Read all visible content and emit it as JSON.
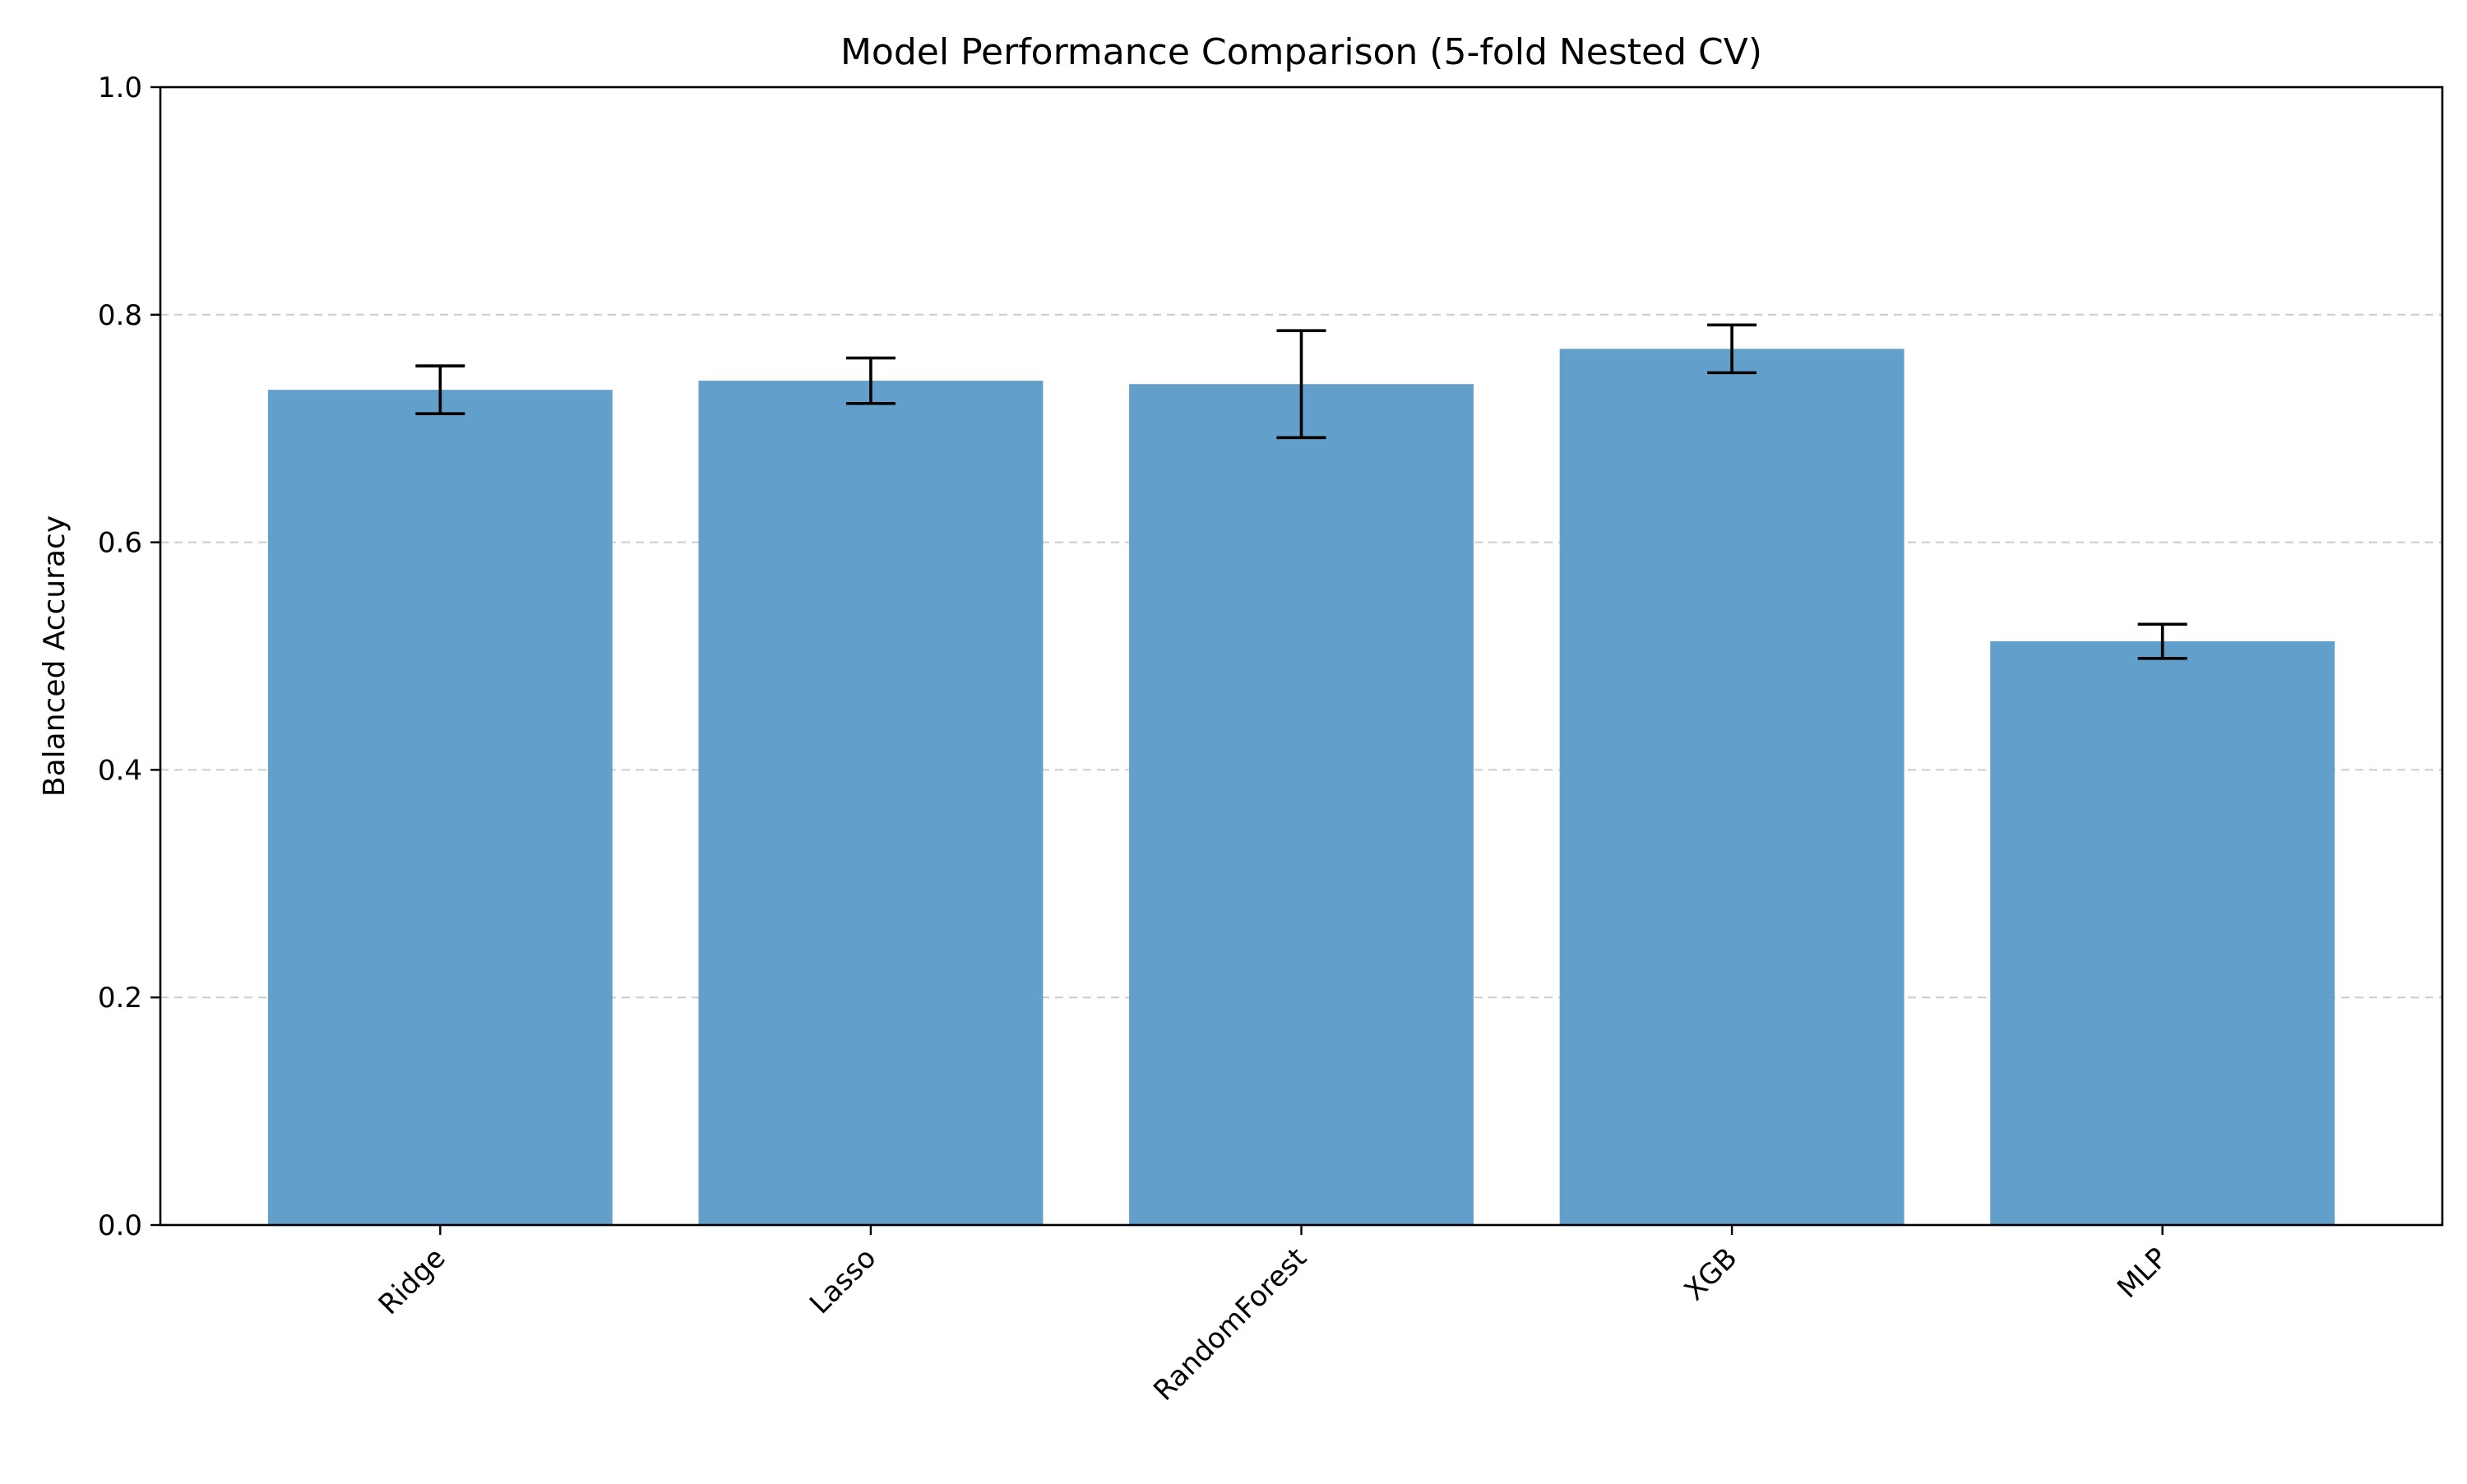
{
  "chart_data": {
    "type": "bar",
    "title": "Model Performance Comparison (5-fold Nested CV)",
    "xlabel": "",
    "ylabel": "Balanced Accuracy",
    "categories": [
      "Ridge",
      "Lasso",
      "RandomForest",
      "XGB",
      "MLP"
    ],
    "values": [
      0.734,
      0.742,
      0.739,
      0.77,
      0.513
    ],
    "errors": [
      0.021,
      0.02,
      0.047,
      0.021,
      0.015
    ],
    "ylim": [
      0,
      1.0
    ],
    "yticks": [
      0.0,
      0.2,
      0.4,
      0.6,
      0.8,
      1.0
    ],
    "ytick_labels": [
      "0.0",
      "0.2",
      "0.4",
      "0.6",
      "0.8",
      "1.0"
    ],
    "grid": "y-dashed",
    "bar_color": "#629fca",
    "error_color": "#000000",
    "grid_color": "#cccccc"
  }
}
